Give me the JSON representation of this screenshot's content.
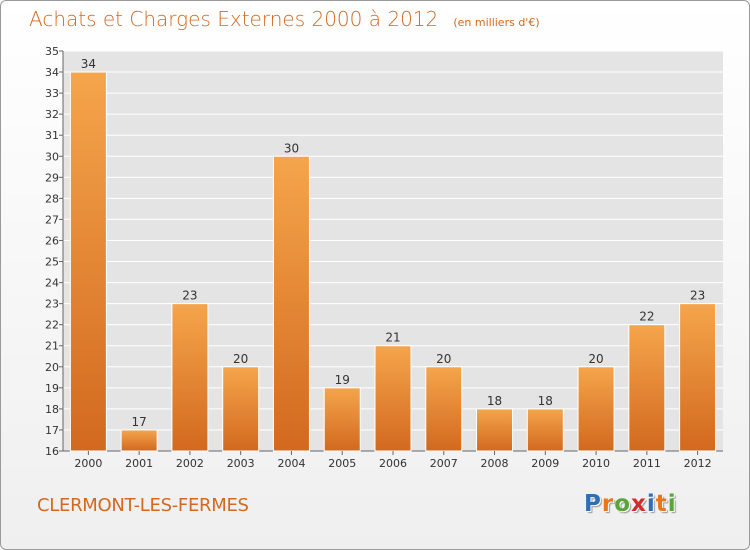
{
  "title": "Achats et Charges Externes 2000 à 2012",
  "subtitle": "(en milliers d'€)",
  "place": "CLERMONT-LES-FERMES",
  "logo": {
    "text": "Proxiti",
    "letter_colors": [
      "#2d6fb7",
      "#e8761b",
      "#5aa43a",
      "#d22d2d",
      "#2d6fb7",
      "#e8761b",
      "#5aa43a"
    ]
  },
  "colors": {
    "bar_top": "#f5a54c",
    "bar_bottom": "#d2691e",
    "bar_edge": "#ffffff",
    "plot_bg": "#e4e4e4",
    "grid": "#ffffff",
    "text": "#333333",
    "accent": "#d2691e"
  },
  "chart_data": {
    "type": "bar",
    "title": "Achats et Charges Externes 2000 à 2012",
    "subtitle": "(en milliers d'€)",
    "xlabel": "",
    "ylabel": "",
    "ylim": [
      16,
      35
    ],
    "yticks": [
      16,
      17,
      18,
      19,
      20,
      21,
      22,
      23,
      24,
      25,
      26,
      27,
      28,
      29,
      30,
      31,
      32,
      33,
      34,
      35
    ],
    "grid": true,
    "categories": [
      "2000",
      "2001",
      "2002",
      "2003",
      "2004",
      "2005",
      "2006",
      "2007",
      "2008",
      "2009",
      "2010",
      "2011",
      "2012"
    ],
    "values": [
      34,
      17,
      23,
      20,
      30,
      19,
      21,
      20,
      18,
      18,
      20,
      22,
      23
    ]
  }
}
